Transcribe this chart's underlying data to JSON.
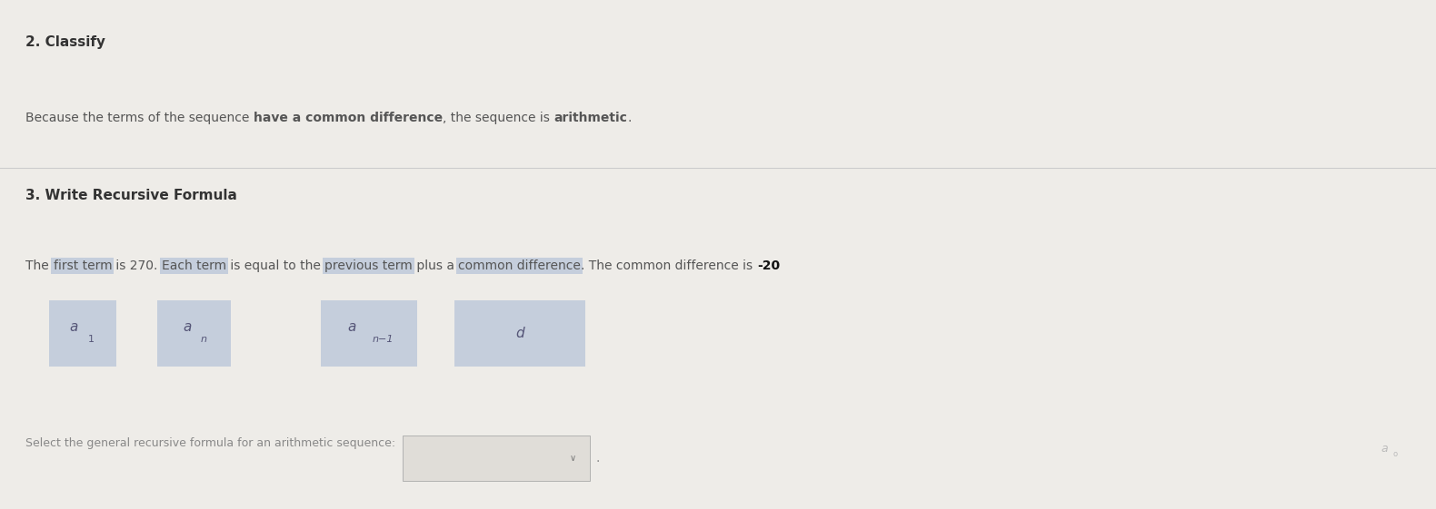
{
  "bg_color": "#eeece8",
  "section1_title": "2. Classify",
  "section1_line1_plain1": "Because the terms of the sequence ",
  "section1_line1_bold1": "have a common difference",
  "section1_line1_plain2": ", the sequence is ",
  "section1_line1_bold2": "arithmetic",
  "section1_line1_plain3": ".",
  "section2_title": "3. Write Recursive Formula",
  "box_color": "#b8c4d8",
  "box_text_color": "#555577",
  "select_line": "Select the general recursive formula for an arithmetic sequence:",
  "title_color": "#333333",
  "text_color": "#555555",
  "bold_color": "#111111",
  "highlight_bg": "#b8c4d8",
  "divider_color": "#cccccc"
}
